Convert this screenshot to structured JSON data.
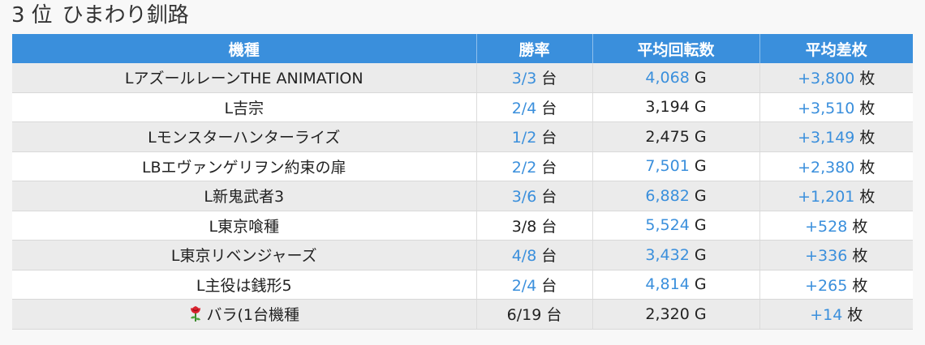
{
  "header": {
    "rank_number": "3",
    "rank_suffix": "位",
    "store_name": "ひまわり釧路"
  },
  "table": {
    "columns": [
      "機種",
      "勝率",
      "平均回転数",
      "平均差枚"
    ],
    "rows": [
      {
        "model": "LアズールレーンTHE ANIMATION",
        "win_rate": "3/3",
        "win_rate_unit": "台",
        "win_rate_highlight": true,
        "avg_spins": "4,068",
        "avg_spins_unit": "G",
        "avg_spins_highlight": true,
        "avg_diff": "+3,800",
        "avg_diff_unit": "枚",
        "avg_diff_highlight": true
      },
      {
        "model": "L吉宗",
        "win_rate": "2/4",
        "win_rate_unit": "台",
        "win_rate_highlight": true,
        "avg_spins": "3,194",
        "avg_spins_unit": "G",
        "avg_spins_highlight": false,
        "avg_diff": "+3,510",
        "avg_diff_unit": "枚",
        "avg_diff_highlight": true
      },
      {
        "model": "Lモンスターハンターライズ",
        "win_rate": "1/2",
        "win_rate_unit": "台",
        "win_rate_highlight": true,
        "avg_spins": "2,475",
        "avg_spins_unit": "G",
        "avg_spins_highlight": false,
        "avg_diff": "+3,149",
        "avg_diff_unit": "枚",
        "avg_diff_highlight": true
      },
      {
        "model": "LBエヴァンゲリヲン約束の扉",
        "win_rate": "2/2",
        "win_rate_unit": "台",
        "win_rate_highlight": true,
        "avg_spins": "7,501",
        "avg_spins_unit": "G",
        "avg_spins_highlight": true,
        "avg_diff": "+2,380",
        "avg_diff_unit": "枚",
        "avg_diff_highlight": true
      },
      {
        "model": "L新鬼武者3",
        "win_rate": "3/6",
        "win_rate_unit": "台",
        "win_rate_highlight": true,
        "avg_spins": "6,882",
        "avg_spins_unit": "G",
        "avg_spins_highlight": true,
        "avg_diff": "+1,201",
        "avg_diff_unit": "枚",
        "avg_diff_highlight": true
      },
      {
        "model": "L東京喰種",
        "win_rate": "3/8",
        "win_rate_unit": "台",
        "win_rate_highlight": false,
        "avg_spins": "5,524",
        "avg_spins_unit": "G",
        "avg_spins_highlight": true,
        "avg_diff": "+528",
        "avg_diff_unit": "枚",
        "avg_diff_highlight": true
      },
      {
        "model": "L東京リベンジャーズ",
        "win_rate": "4/8",
        "win_rate_unit": "台",
        "win_rate_highlight": true,
        "avg_spins": "3,432",
        "avg_spins_unit": "G",
        "avg_spins_highlight": true,
        "avg_diff": "+336",
        "avg_diff_unit": "枚",
        "avg_diff_highlight": true
      },
      {
        "model": "L主役は銭形5",
        "win_rate": "2/4",
        "win_rate_unit": "台",
        "win_rate_highlight": true,
        "avg_spins": "4,814",
        "avg_spins_unit": "G",
        "avg_spins_highlight": true,
        "avg_diff": "+265",
        "avg_diff_unit": "枚",
        "avg_diff_highlight": true
      },
      {
        "model": "バラ(1台機種",
        "model_icon": "rose-icon",
        "win_rate": "6/19",
        "win_rate_unit": "台",
        "win_rate_highlight": false,
        "avg_spins": "2,320",
        "avg_spins_unit": "G",
        "avg_spins_highlight": false,
        "avg_diff": "+14",
        "avg_diff_unit": "枚",
        "avg_diff_highlight": true
      }
    ]
  },
  "colors": {
    "header_bg": "#3a8fdc",
    "highlight": "#3a8fdc",
    "text": "#222222",
    "row_odd": "#ebebeb",
    "row_even": "#ffffff"
  }
}
